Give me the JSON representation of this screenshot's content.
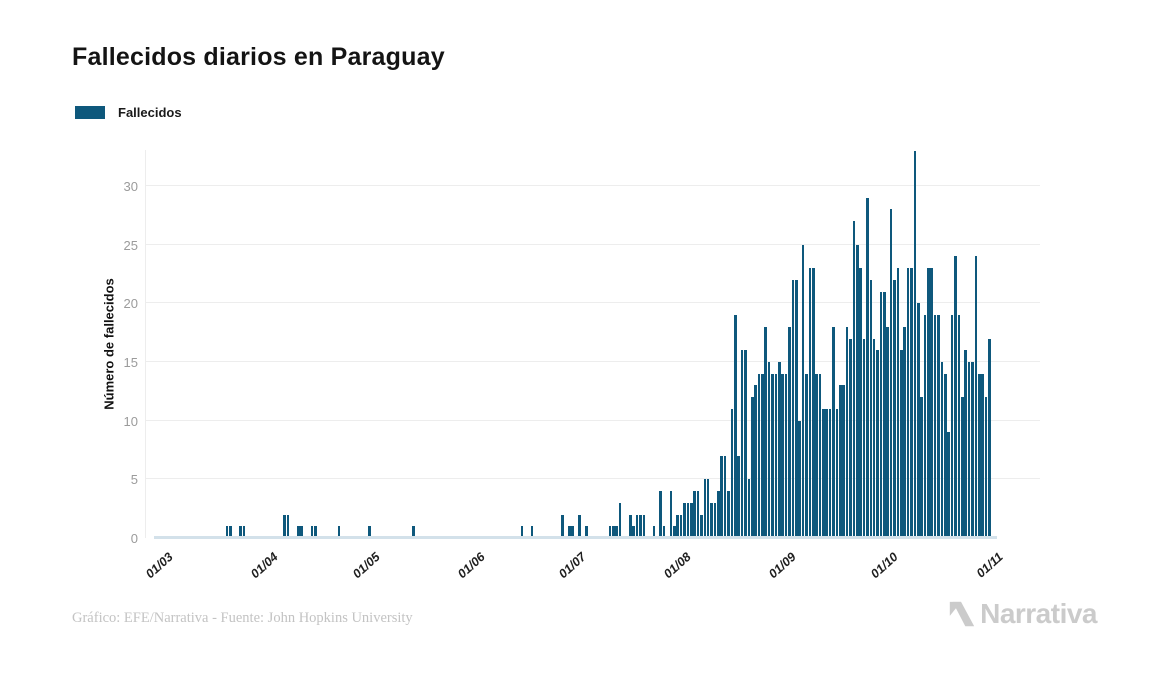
{
  "title": "Fallecidos diarios en Paraguay",
  "legend": {
    "label": "Fallecidos",
    "swatch_color": "#0E587C"
  },
  "footer": {
    "credit": "Gráfico: EFE/Narrativa - Fuente: John Hopkins University",
    "brand": "Narrativa"
  },
  "chart_data": {
    "type": "bar",
    "title": "Fallecidos diarios en Paraguay",
    "series_name": "Fallecidos",
    "xlabel": "",
    "ylabel": "Número de fallecidos",
    "ylim": [
      0,
      33
    ],
    "yticks": [
      0,
      5,
      10,
      15,
      20,
      25,
      30
    ],
    "grid": "horizontal",
    "legend_position": "top-left",
    "bar_color": "#0E587C",
    "x_start_label": "01/03",
    "x_tick_labels": [
      "01/03",
      "01/04",
      "01/05",
      "01/06",
      "01/07",
      "01/08",
      "01/09",
      "01/10",
      "01/11"
    ],
    "x_tick_day_indices": [
      0,
      31,
      61,
      92,
      122,
      153,
      184,
      214,
      245
    ],
    "values": [
      0,
      0,
      0,
      0,
      0,
      0,
      0,
      0,
      0,
      0,
      0,
      0,
      0,
      0,
      0,
      0,
      0,
      0,
      0,
      0,
      0,
      1,
      1,
      0,
      0,
      1,
      1,
      0,
      0,
      0,
      0,
      0,
      0,
      0,
      0,
      0,
      0,
      0,
      2,
      2,
      0,
      0,
      1,
      1,
      0,
      0,
      1,
      1,
      0,
      0,
      0,
      0,
      0,
      0,
      1,
      0,
      0,
      0,
      0,
      0,
      0,
      0,
      0,
      1,
      0,
      0,
      0,
      0,
      0,
      0,
      0,
      0,
      0,
      0,
      0,
      0,
      1,
      0,
      0,
      0,
      0,
      0,
      0,
      0,
      0,
      0,
      0,
      0,
      0,
      0,
      0,
      0,
      0,
      0,
      0,
      0,
      0,
      0,
      0,
      0,
      0,
      0,
      0,
      0,
      0,
      0,
      0,
      0,
      1,
      0,
      0,
      1,
      0,
      0,
      0,
      0,
      0,
      0,
      0,
      0,
      2,
      0,
      1,
      1,
      0,
      2,
      0,
      1,
      0,
      0,
      0,
      0,
      0,
      0,
      1,
      1,
      1,
      3,
      0,
      0,
      2,
      1,
      2,
      2,
      2,
      0,
      0,
      1,
      0,
      4,
      1,
      0,
      4,
      1,
      2,
      2,
      3,
      3,
      3,
      4,
      4,
      2,
      5,
      5,
      3,
      3,
      4,
      7,
      7,
      4,
      11,
      19,
      7,
      16,
      16,
      5,
      12,
      13,
      14,
      14,
      18,
      15,
      14,
      14,
      15,
      14,
      14,
      18,
      22,
      22,
      10,
      25,
      14,
      23,
      23,
      14,
      14,
      11,
      11,
      11,
      18,
      11,
      13,
      13,
      18,
      17,
      27,
      25,
      23,
      17,
      29,
      22,
      17,
      16,
      21,
      21,
      18,
      28,
      22,
      23,
      16,
      18,
      23,
      23,
      33,
      20,
      12,
      19,
      23,
      23,
      19,
      19,
      15,
      14,
      9,
      19,
      24,
      19,
      12,
      16,
      15,
      15,
      24,
      14,
      14,
      12,
      17
    ]
  }
}
